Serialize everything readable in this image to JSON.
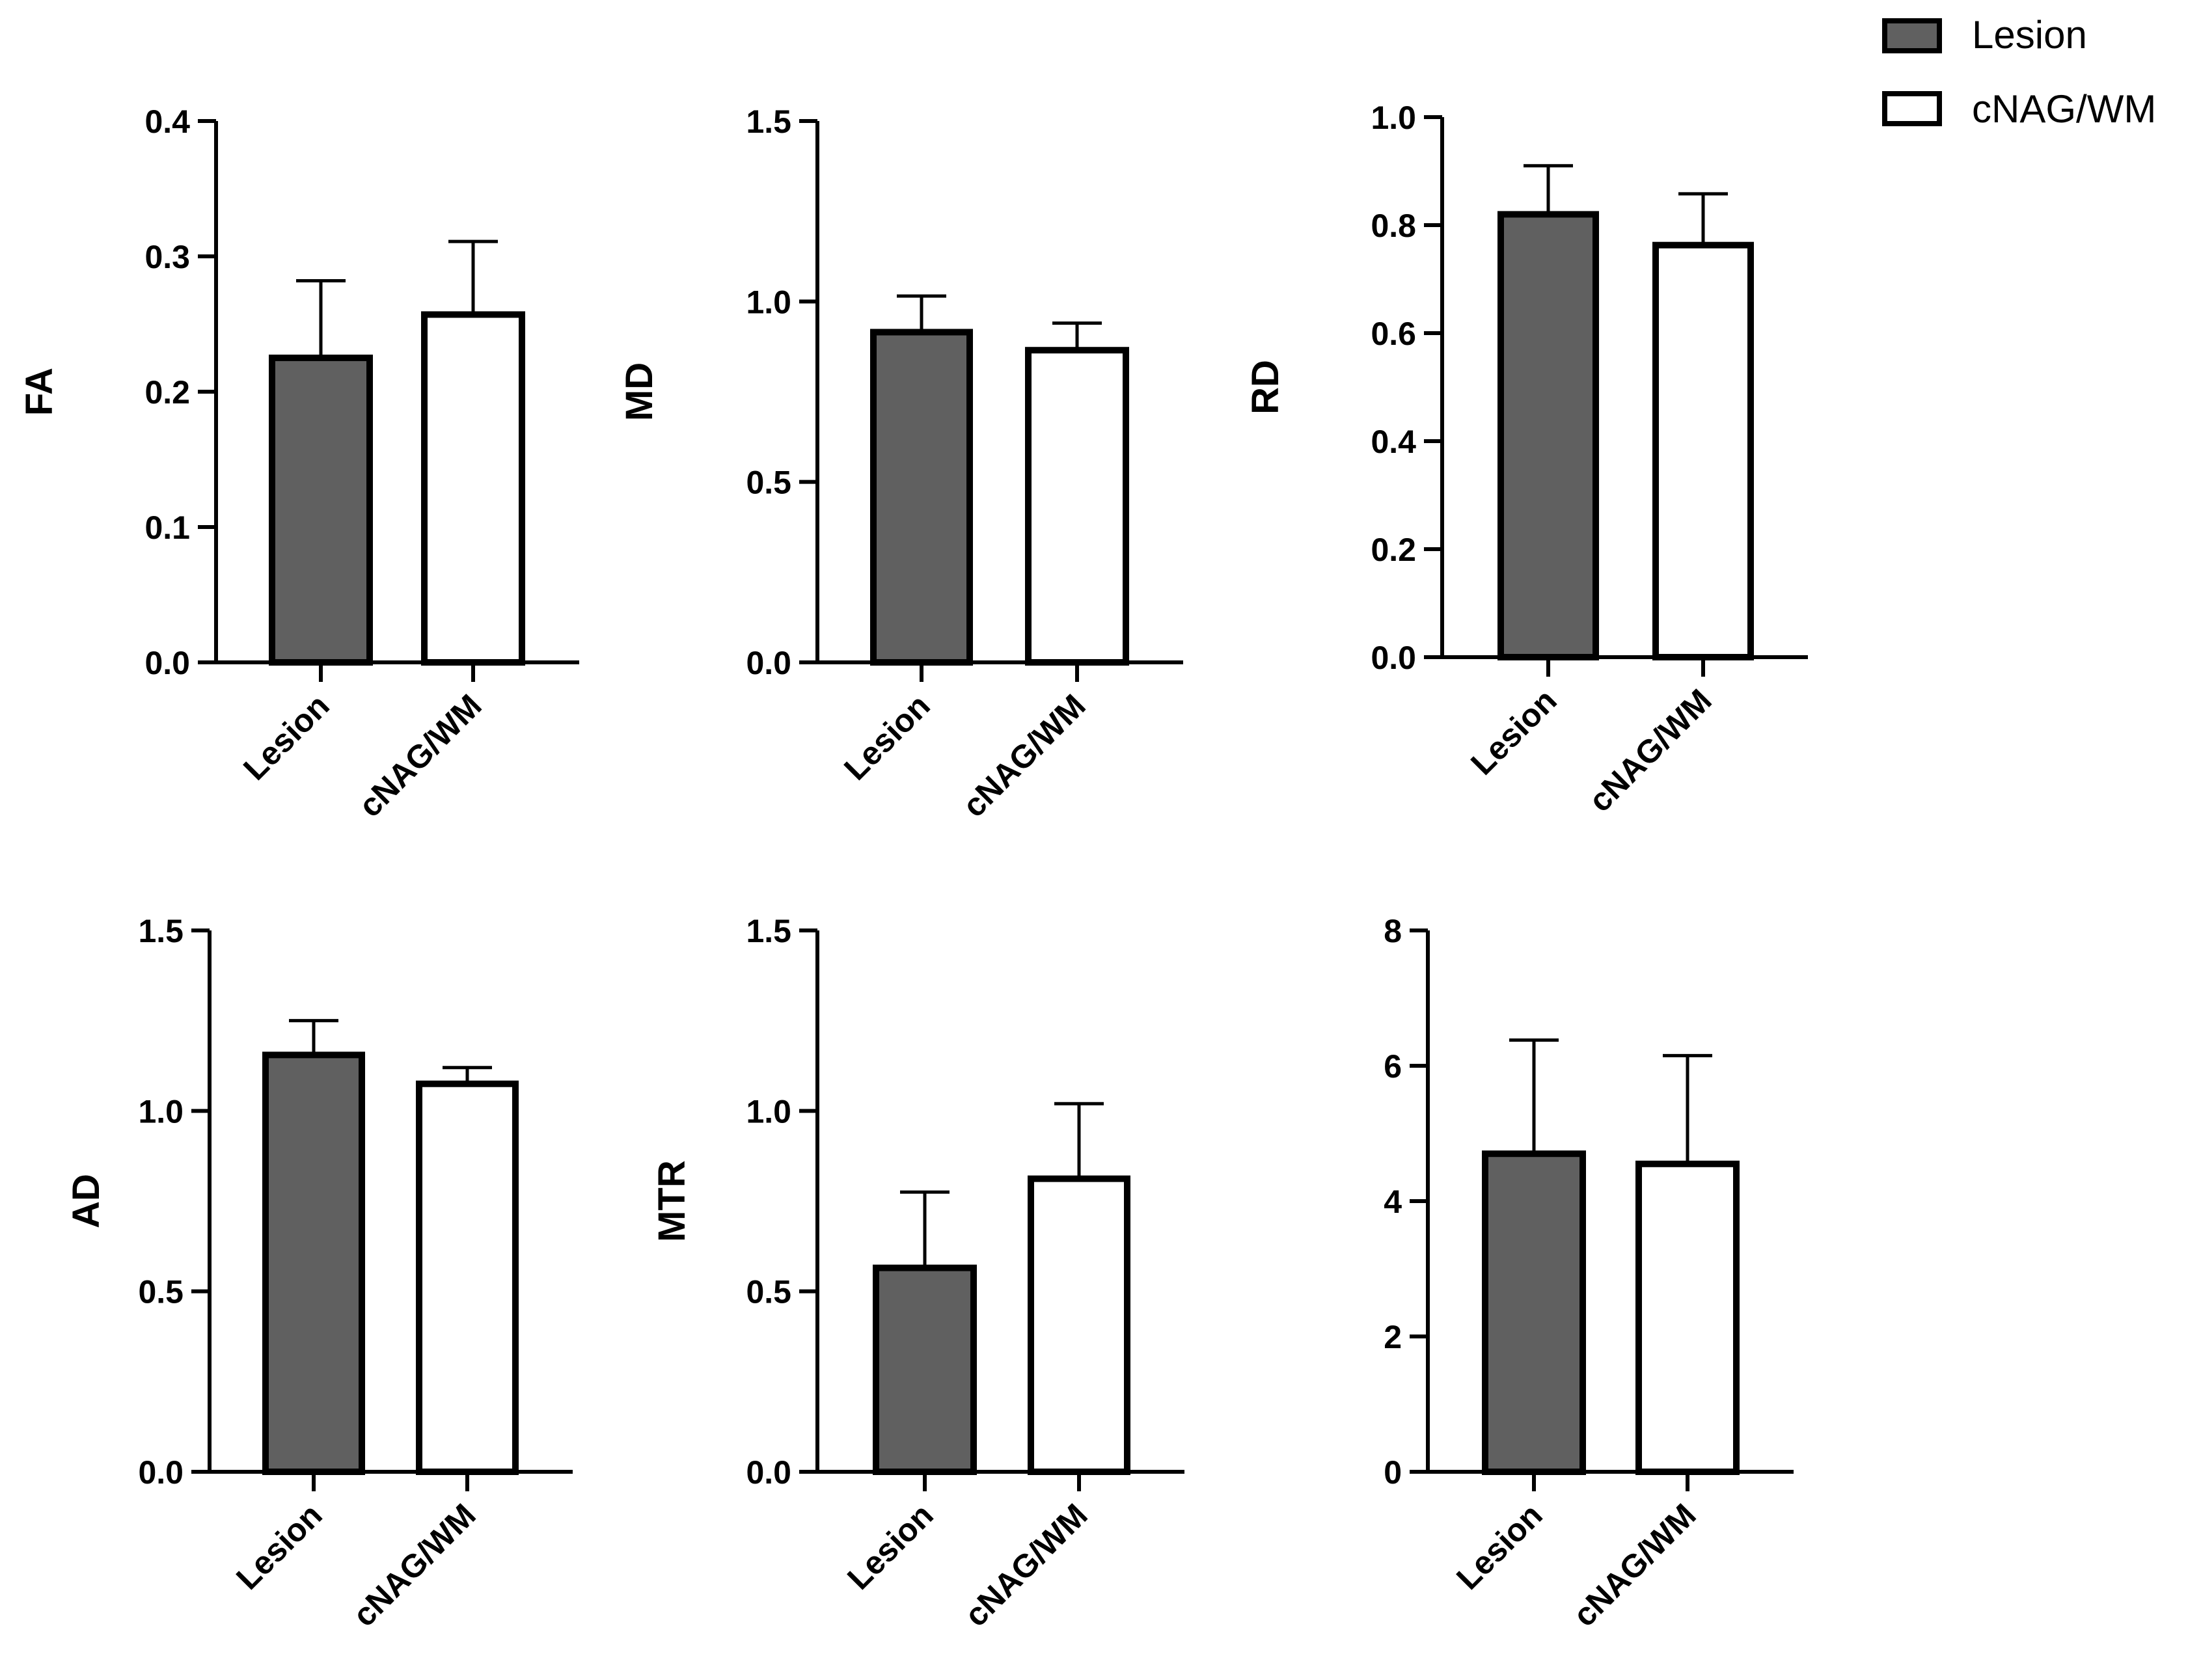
{
  "legend": {
    "position": "top-right",
    "entries": [
      {
        "label": "Lesion",
        "color": "#606060"
      },
      {
        "label": "cNAG/WM",
        "color": "#ffffff"
      }
    ]
  },
  "chart_data": [
    {
      "type": "bar",
      "ylabel": "FA",
      "categories": [
        "Lesion",
        "cNAG/WM"
      ],
      "values": [
        0.225,
        0.257
      ],
      "errors": [
        0.057,
        0.054
      ],
      "ylim": [
        0,
        0.4
      ],
      "yticks": [
        "0.0",
        "0.1",
        "0.2",
        "0.3",
        "0.4"
      ],
      "ytick_values": [
        0,
        0.1,
        0.2,
        0.3,
        0.4
      ]
    },
    {
      "type": "bar",
      "ylabel": "MD",
      "categories": [
        "Lesion",
        "cNAG/WM"
      ],
      "values": [
        0.915,
        0.865
      ],
      "errors": [
        0.1,
        0.075
      ],
      "ylim": [
        0,
        1.5
      ],
      "yticks": [
        "0.0",
        "0.5",
        "1.0",
        "1.5"
      ],
      "ytick_values": [
        0,
        0.5,
        1.0,
        1.5
      ]
    },
    {
      "type": "bar",
      "ylabel": "RD",
      "categories": [
        "Lesion",
        "cNAG/WM"
      ],
      "values": [
        0.82,
        0.763
      ],
      "errors": [
        0.09,
        0.095
      ],
      "ylim": [
        0,
        1.0
      ],
      "yticks": [
        "0.0",
        "0.2",
        "0.4",
        "0.6",
        "0.8",
        "1.0"
      ],
      "ytick_values": [
        0,
        0.2,
        0.4,
        0.6,
        0.8,
        1.0
      ]
    },
    {
      "type": "bar",
      "ylabel": "AD",
      "categories": [
        "Lesion",
        "cNAG/WM"
      ],
      "values": [
        1.155,
        1.075
      ],
      "errors": [
        0.095,
        0.045
      ],
      "ylim": [
        0,
        1.5
      ],
      "yticks": [
        "0.0",
        "0.5",
        "1.0",
        "1.5"
      ],
      "ytick_values": [
        0,
        0.5,
        1.0,
        1.5
      ]
    },
    {
      "type": "bar",
      "ylabel": "MTR",
      "categories": [
        "Lesion",
        "cNAG/WM"
      ],
      "values": [
        0.565,
        0.812
      ],
      "errors": [
        0.21,
        0.208
      ],
      "ylim": [
        0,
        1.5
      ],
      "yticks": [
        "0.0",
        "0.5",
        "1.0",
        "1.5"
      ],
      "ytick_values": [
        0,
        0.5,
        1.0,
        1.5
      ]
    },
    {
      "type": "bar",
      "ylabel": "",
      "categories": [
        "Lesion",
        "cNAG/WM"
      ],
      "values": [
        4.7,
        4.55
      ],
      "errors": [
        1.68,
        1.6
      ],
      "ylim": [
        0,
        8
      ],
      "yticks": [
        "0",
        "2",
        "4",
        "6",
        "8"
      ],
      "ytick_values": [
        0,
        2,
        4,
        6,
        8
      ]
    }
  ]
}
